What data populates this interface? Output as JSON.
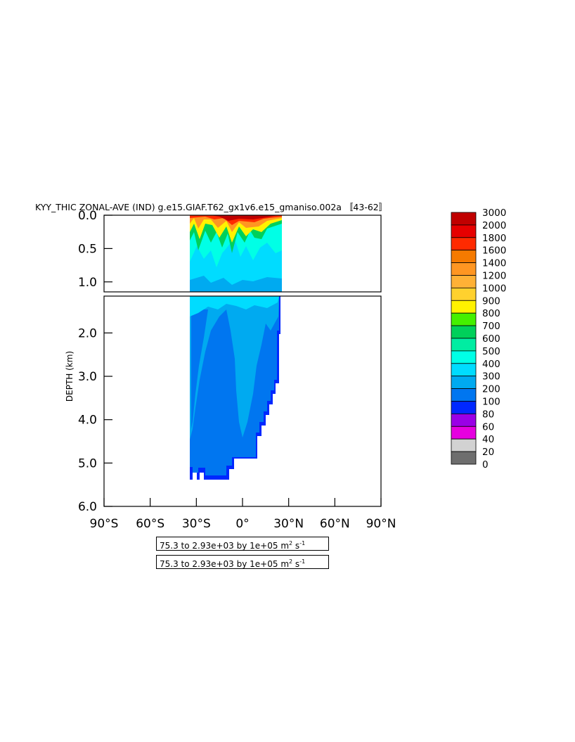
{
  "chart_data": {
    "type": "heatmap",
    "title": "KYY_THIC ZONAL-AVE (IND) g.e15.GIAF.T62_gx1v6.e15_gmaniso.002a 〚43-62〛",
    "ylabel": "DEPTH (km)",
    "xlabel": "",
    "x_ticks": [
      "90°S",
      "60°S",
      "30°S",
      "0°",
      "30°N",
      "60°N",
      "90°N"
    ],
    "x_range": [
      -90,
      90
    ],
    "upper_panel": {
      "depth_range": [
        0.0,
        1.15
      ],
      "y_ticks": [
        "0.0",
        "0.5",
        "1.0"
      ],
      "y_values": [
        0.0,
        0.5,
        1.0
      ]
    },
    "lower_panel": {
      "depth_range": [
        1.15,
        6.0
      ],
      "y_ticks": [
        "2.0",
        "3.0",
        "4.0",
        "5.0",
        "6.0"
      ],
      "y_values": [
        2.0,
        3.0,
        4.0,
        5.0,
        6.0
      ]
    },
    "data_extent_lat": [
      -34,
      25
    ],
    "colorbar": {
      "levels": [
        "3000",
        "2000",
        "1800",
        "1600",
        "1400",
        "1200",
        "1000",
        "900",
        "800",
        "700",
        "600",
        "500",
        "400",
        "300",
        "200",
        "100",
        "80",
        "60",
        "40",
        "20",
        "0"
      ],
      "colors": [
        "#c00000",
        "#e60000",
        "#ff2a00",
        "#f57a00",
        "#ff9622",
        "#ffb136",
        "#ffd12e",
        "#fff200",
        "#44f000",
        "#00d05a",
        "#00eda2",
        "#00ffe6",
        "#00dcff",
        "#00aaf0",
        "#0076f0",
        "#0028ff",
        "#9a00e6",
        "#e600e0",
        "#d2d2d2",
        "#6e6e6e"
      ]
    },
    "range_text": "75.3 to 2.93e+03 by 1e+05 m",
    "range_units_sup": "2",
    "range_units_s": " s",
    "range_units_sup2": "-1"
  }
}
